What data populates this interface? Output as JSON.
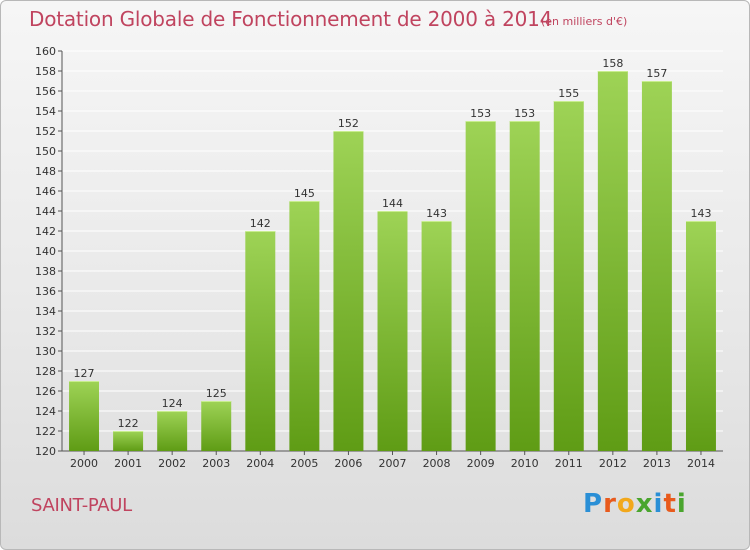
{
  "title": "Dotation Globale de Fonctionnement de 2000 à 2014",
  "unit_note": "(en milliers d'€)",
  "commune": "SAINT-PAUL",
  "logo": {
    "text": "Proxiti",
    "letter_colors": [
      "#2a8fd6",
      "#e85a1c",
      "#f2a81b",
      "#4aa52e",
      "#2a8fd6",
      "#e85a1c",
      "#4aa52e"
    ]
  },
  "colors": {
    "title": "#c0445f",
    "bar_light": "#9ed356",
    "bar_dark": "#5f9c15",
    "grid": "#ffffff"
  },
  "chart_data": {
    "type": "bar",
    "title": "Dotation Globale de Fonctionnement de 2000 à 2014",
    "xlabel": "",
    "ylabel": "",
    "categories": [
      "2000",
      "2001",
      "2002",
      "2003",
      "2004",
      "2005",
      "2006",
      "2007",
      "2008",
      "2009",
      "2010",
      "2011",
      "2012",
      "2013",
      "2014"
    ],
    "values": [
      127,
      122,
      124,
      125,
      142,
      145,
      152,
      144,
      143,
      153,
      153,
      155,
      158,
      157,
      143
    ],
    "ylim": [
      120,
      160
    ],
    "yticks": [
      120,
      122,
      124,
      126,
      128,
      130,
      132,
      134,
      136,
      138,
      140,
      142,
      144,
      146,
      148,
      150,
      152,
      154,
      156,
      158,
      160
    ],
    "grid": true,
    "data_labels": true
  }
}
